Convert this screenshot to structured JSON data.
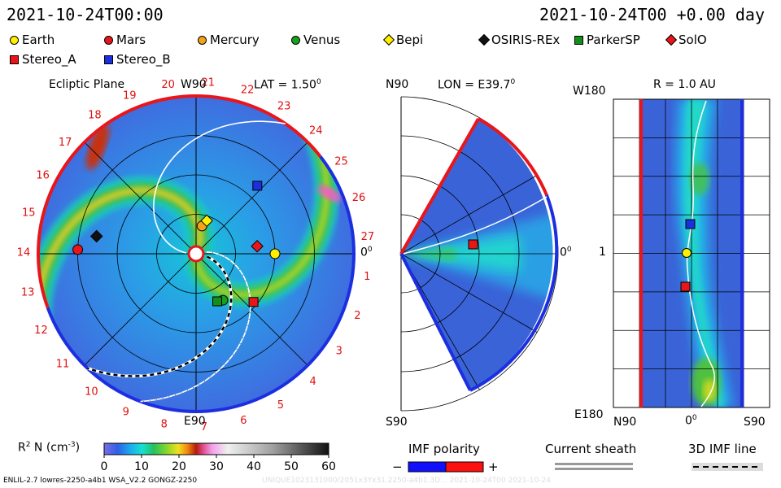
{
  "header": {
    "left_time": "2021-10-24T00:00",
    "right_time": "2021-10-24T00 +0.00 day"
  },
  "legend": [
    {
      "name": "Earth",
      "shape": "circle",
      "color": "#ffef00"
    },
    {
      "name": "Mars",
      "shape": "circle",
      "color": "#e8161b"
    },
    {
      "name": "Mercury",
      "shape": "circle",
      "color": "#f3a21a"
    },
    {
      "name": "Venus",
      "shape": "circle",
      "color": "#18a020"
    },
    {
      "name": "Bepi",
      "shape": "diamond",
      "color": "#ffef00"
    },
    {
      "name": "OSIRIS-REx",
      "shape": "diamond",
      "color": "#111111"
    },
    {
      "name": "ParkerSP",
      "shape": "square",
      "color": "#138e1a"
    },
    {
      "name": "SolO",
      "shape": "diamond",
      "color": "#e8161b"
    },
    {
      "name": "Stereo_A",
      "shape": "square",
      "color": "#e8161b"
    },
    {
      "name": "Stereo_B",
      "shape": "square",
      "color": "#1c2fe0"
    }
  ],
  "panels": {
    "ecliptic": {
      "title": "Ecliptic Plane",
      "top_label": "W90",
      "lat_label": "LAT = 1.50",
      "lat_sup": "0",
      "right_label": "0",
      "right_sup": "0",
      "bottom_label": "E90",
      "sector_numbers": [
        "1",
        "2",
        "3",
        "4",
        "5",
        "6",
        "7",
        "8",
        "9",
        "10",
        "11",
        "12",
        "13",
        "14",
        "15",
        "16",
        "17",
        "18",
        "19",
        "20",
        "21",
        "22",
        "23",
        "24",
        "25",
        "26",
        "27"
      ]
    },
    "meridional": {
      "top_label": "N90",
      "lon_label": "LON = E39.7",
      "lon_sup": "0",
      "right_label": "0",
      "right_sup": "0",
      "bottom_label": "S90"
    },
    "radial": {
      "title": "R = 1.0 AU",
      "top_left": "W180",
      "mid_left": "1",
      "bottom_left": "E180",
      "x_left": "N90",
      "x_mid": "0",
      "x_mid_sup": "0",
      "x_right": "S90"
    }
  },
  "colorbar": {
    "label": "R",
    "label_sup": "2",
    "label_rest": " N (cm",
    "label_exp": "-3",
    "label_close": ")",
    "ticks": [
      "0",
      "10",
      "20",
      "30",
      "40",
      "50",
      "60"
    ]
  },
  "imf": {
    "title": "IMF polarity",
    "minus": "−",
    "plus": "+",
    "neg_color": "#1010ff",
    "pos_color": "#ff1010"
  },
  "sheath": {
    "title": "Current sheath"
  },
  "imf3d": {
    "title": "3D IMF line"
  },
  "footer": {
    "left": "ENLIL-2.7 lowres-2250-a4b1 WSA_V2.2 GONGZ-2250",
    "right": "UNIQUE1023131000/2051x3Yx31.2250-a4b1.3D...  2021-10-24T00  2021-10-24"
  },
  "chart_data": {
    "type": "heatmap",
    "quantity": "R2 N (cm-3)",
    "color_range": [
      0,
      60
    ],
    "colorbar_ticks": [
      0,
      10,
      20,
      30,
      40,
      50,
      60
    ],
    "bodies": [
      {
        "name": "Earth",
        "panel": "ecliptic",
        "angle_deg": 0,
        "r_au": 1.0
      },
      {
        "name": "Mars",
        "panel": "ecliptic",
        "angle_deg": 178,
        "r_au": 1.5
      },
      {
        "name": "Mercury",
        "panel": "ecliptic",
        "angle_deg": 78,
        "r_au": 0.36
      },
      {
        "name": "Venus",
        "panel": "ecliptic",
        "angle_deg": -60,
        "r_au": 0.68
      },
      {
        "name": "Bepi",
        "panel": "ecliptic",
        "angle_deg": 72,
        "r_au": 0.44
      },
      {
        "name": "OSIRIS-REx",
        "panel": "ecliptic",
        "angle_deg": 170,
        "r_au": 1.28
      },
      {
        "name": "ParkerSP",
        "panel": "ecliptic",
        "angle_deg": -66,
        "r_au": 0.66
      },
      {
        "name": "SolO",
        "panel": "ecliptic",
        "angle_deg": 7,
        "r_au": 0.78
      },
      {
        "name": "Stereo_A",
        "panel": "ecliptic",
        "angle_deg": -40,
        "r_au": 0.95
      },
      {
        "name": "Stereo_B",
        "panel": "ecliptic",
        "angle_deg": 48,
        "r_au": 1.16
      }
    ]
  }
}
